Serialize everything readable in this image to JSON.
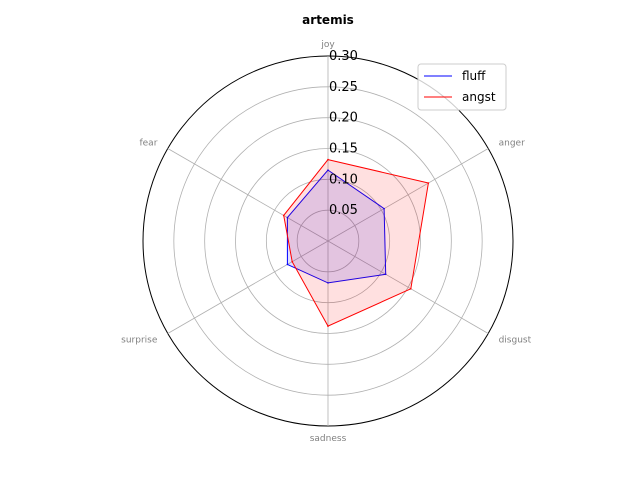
{
  "chart_data": {
    "type": "radar",
    "title": "artemis",
    "categories": [
      "joy",
      "anger",
      "disgust",
      "sadness",
      "surprise",
      "fear"
    ],
    "r_ticks": [
      "0.05",
      "0.10",
      "0.15",
      "0.20",
      "0.25",
      "0.30"
    ],
    "r_tick_values": [
      0.05,
      0.1,
      0.15,
      0.2,
      0.25,
      0.3
    ],
    "rlim": [
      0,
      0.3
    ],
    "grid": true,
    "legend_position": "top-right",
    "series": [
      {
        "name": "fluff",
        "values": [
          0.115,
          0.105,
          0.108,
          0.068,
          0.076,
          0.076
        ],
        "color": "#0000ff",
        "fill": "#0000ff"
      },
      {
        "name": "angst",
        "values": [
          0.132,
          0.188,
          0.155,
          0.138,
          0.067,
          0.083
        ],
        "color": "#ff0000",
        "fill": "#ff0000"
      }
    ]
  }
}
